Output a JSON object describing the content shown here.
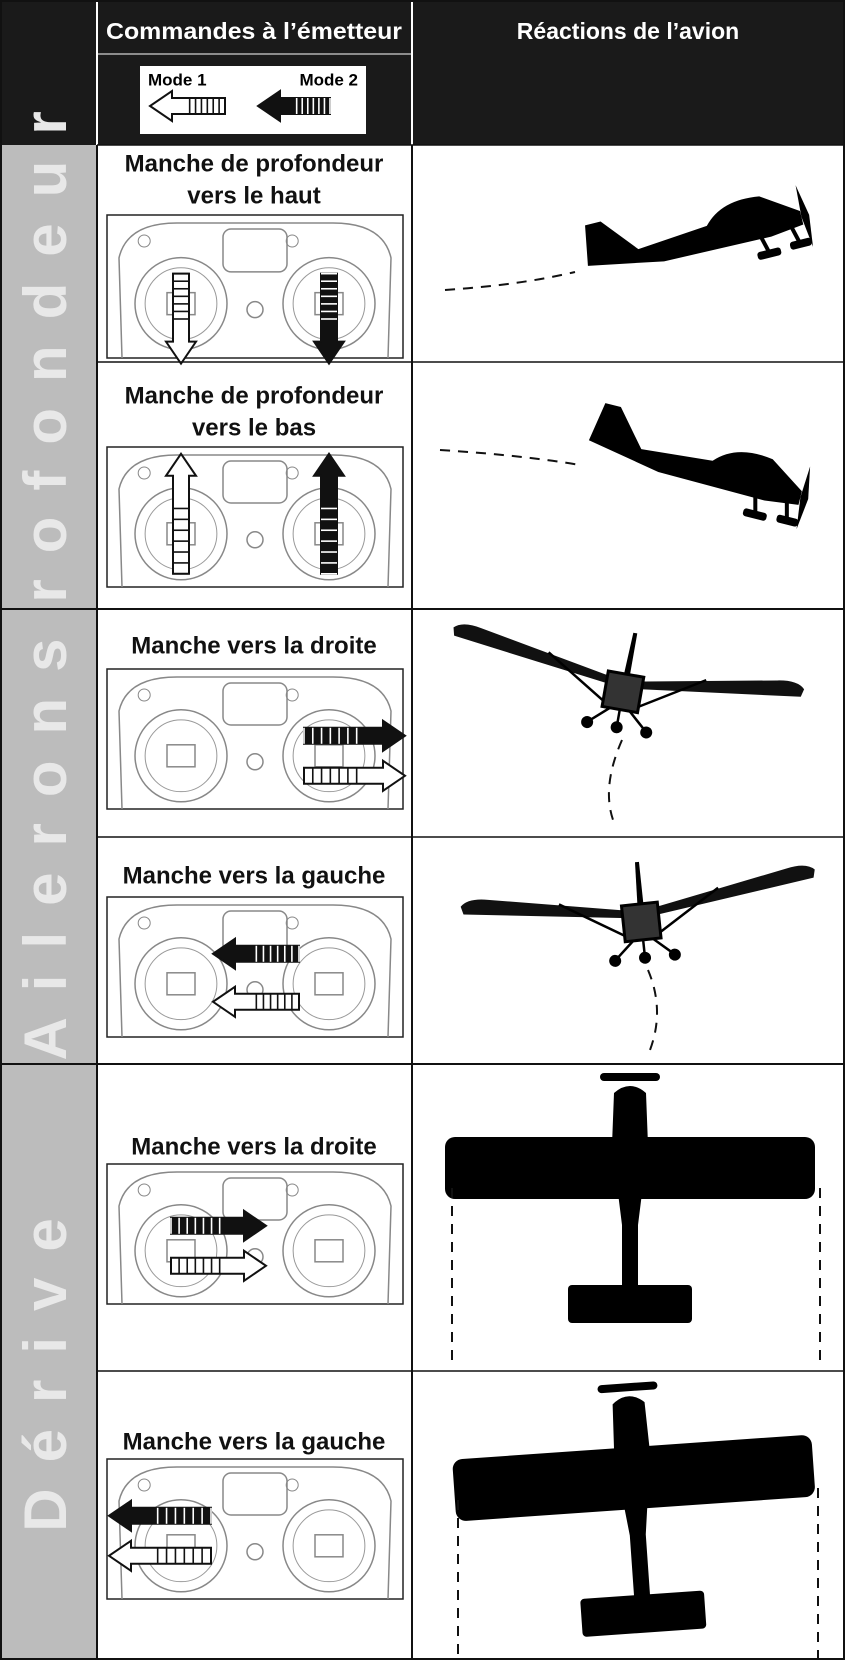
{
  "header": {
    "controls": "Commandes à l’émetteur",
    "reactions": "Réactions de l’avion",
    "mode1": "Mode 1",
    "mode2": "Mode 2"
  },
  "sections": [
    {
      "label": "Profondeur",
      "rows": [
        {
          "caption": [
            "Manche de profondeur",
            "vers le haut"
          ]
        },
        {
          "caption": [
            "Manche de profondeur",
            "vers le bas"
          ]
        }
      ]
    },
    {
      "label": "Ailerons",
      "rows": [
        {
          "caption": [
            "Manche vers la droite"
          ]
        },
        {
          "caption": [
            "Manche vers la gauche"
          ]
        }
      ]
    },
    {
      "label": "Dérive",
      "rows": [
        {
          "caption": [
            "Manche vers la droite"
          ]
        },
        {
          "caption": [
            "Manche vers la gauche"
          ]
        }
      ]
    }
  ]
}
